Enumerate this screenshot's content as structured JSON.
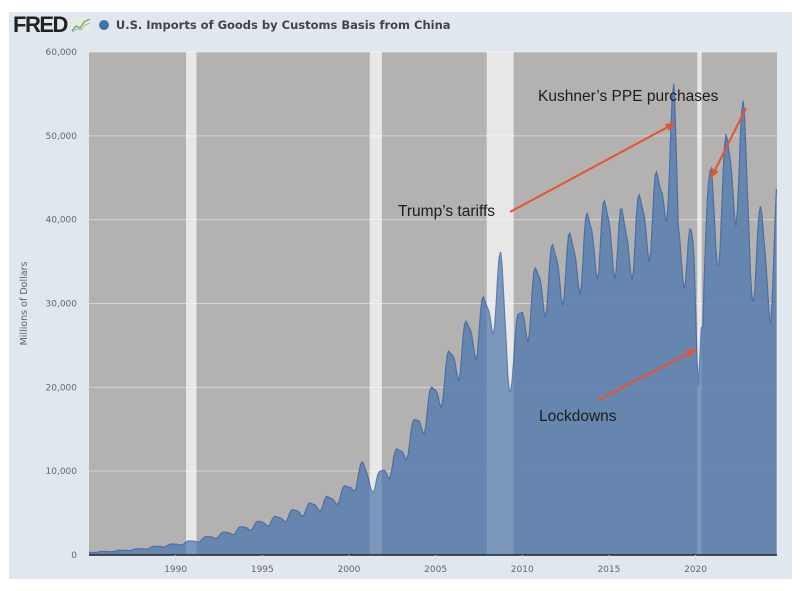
{
  "header": {
    "logo_text": "FRED",
    "logo_icon": "line-chart-icon",
    "series_title": "U.S. Imports of Goods by Customs Basis from China",
    "series_color": "#4572a7"
  },
  "chart_data": {
    "type": "area",
    "title": "U.S. Imports of Goods by Customs Basis from China",
    "xlabel": "",
    "ylabel": "Millions of Dollars",
    "xlim": [
      1985.0,
      2024.7
    ],
    "ylim": [
      0,
      60000
    ],
    "yticks": [
      0,
      10000,
      20000,
      30000,
      40000,
      50000,
      60000
    ],
    "ytick_labels": [
      "0",
      "10,000",
      "20,000",
      "30,000",
      "40,000",
      "50,000",
      "60,000"
    ],
    "xticks": [
      1990,
      1995,
      2000,
      2005,
      2010,
      2015,
      2020
    ],
    "xtick_labels": [
      "1990",
      "1995",
      "2000",
      "2005",
      "2010",
      "2015",
      "2020"
    ],
    "grid": true,
    "legend": "top-left",
    "frequency": "monthly",
    "recessions": [
      [
        1990.6,
        1991.2
      ],
      [
        2001.2,
        2001.9
      ],
      [
        2007.95,
        2009.5
      ],
      [
        2020.1,
        2020.35
      ]
    ],
    "series": [
      {
        "name": "U.S. Imports of Goods by Customs Basis from China",
        "color": "#4572a7",
        "keypoints": [
          [
            1985.0,
            300
          ],
          [
            1986.0,
            400
          ],
          [
            1987.0,
            550
          ],
          [
            1988.0,
            700
          ],
          [
            1989.0,
            1000
          ],
          [
            1990.0,
            1250
          ],
          [
            1991.0,
            1600
          ],
          [
            1992.0,
            2100
          ],
          [
            1993.0,
            2600
          ],
          [
            1994.0,
            3200
          ],
          [
            1995.0,
            3800
          ],
          [
            1996.0,
            4300
          ],
          [
            1997.0,
            5100
          ],
          [
            1998.0,
            5800
          ],
          [
            1999.0,
            6500
          ],
          [
            2000.0,
            7800
          ],
          [
            2000.8,
            10200
          ],
          [
            2001.5,
            8200
          ],
          [
            2002.0,
            9800
          ],
          [
            2003.0,
            12000
          ],
          [
            2004.0,
            15500
          ],
          [
            2005.0,
            19000
          ],
          [
            2006.0,
            23000
          ],
          [
            2007.0,
            26000
          ],
          [
            2008.0,
            28500
          ],
          [
            2008.8,
            33000
          ],
          [
            2009.2,
            21500
          ],
          [
            2010.0,
            28000
          ],
          [
            2011.0,
            32000
          ],
          [
            2012.0,
            34000
          ],
          [
            2013.0,
            35000
          ],
          [
            2014.0,
            37500
          ],
          [
            2015.0,
            38500
          ],
          [
            2016.0,
            37000
          ],
          [
            2017.0,
            39500
          ],
          [
            2018.0,
            42000
          ],
          [
            2018.8,
            51500
          ],
          [
            2019.0,
            38000
          ],
          [
            2019.5,
            36000
          ],
          [
            2019.9,
            34500
          ],
          [
            2020.15,
            19500
          ],
          [
            2020.5,
            34000
          ],
          [
            2020.9,
            44000
          ],
          [
            2021.2,
            38000
          ],
          [
            2021.8,
            46000
          ],
          [
            2022.3,
            45000
          ],
          [
            2022.8,
            49500
          ],
          [
            2023.2,
            34000
          ],
          [
            2023.8,
            38000
          ],
          [
            2024.3,
            31000
          ],
          [
            2024.7,
            40500
          ]
        ],
        "peak": {
          "date": "2018-10",
          "value": 52000
        },
        "trough_2020": {
          "date": "2020-03",
          "value": 19500
        }
      }
    ],
    "annotations": [
      {
        "text": "Kushner’s PPE purchases",
        "points_to": {
          "x": 2020.9,
          "y": 45000
        },
        "arrow_color": "#e8532f"
      },
      {
        "text": "Trump’s tariffs",
        "points_to": {
          "x": 2018.8,
          "y": 51500
        },
        "arrow_color": "#e8532f"
      },
      {
        "text": "Lockdowns",
        "points_to": {
          "x": 2020.0,
          "y": 24500
        },
        "arrow_color": "#e8532f"
      }
    ]
  }
}
